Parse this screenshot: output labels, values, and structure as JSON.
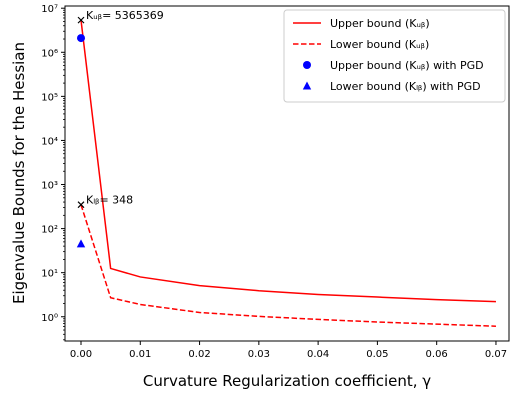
{
  "chart_data": {
    "type": "line",
    "title": "",
    "xlabel": "Curvature Regularization coefficient, γ",
    "ylabel": "Eigenvalue Bounds for the Hessian",
    "xlim": [
      -0.0027,
      0.0722
    ],
    "ylim_log10": [
      -0.55,
      7.05
    ],
    "y_scale": "log",
    "grid": false,
    "legend_position": "top-right",
    "x_ticks": [
      0.0,
      0.01,
      0.02,
      0.03,
      0.04,
      0.05,
      0.06,
      0.07
    ],
    "x_tick_labels": [
      "0.00",
      "0.01",
      "0.02",
      "0.03",
      "0.04",
      "0.05",
      "0.06",
      "0.07"
    ],
    "y_ticks_log10": [
      0,
      1,
      2,
      3,
      4,
      5,
      6,
      7
    ],
    "y_tick_labels": [
      "10⁰",
      "10¹",
      "10²",
      "10³",
      "10⁴",
      "10⁵",
      "10⁶",
      "10⁷"
    ],
    "series": [
      {
        "name": "Upper bound (K_ub)",
        "legend_label": "Upper bound (Kᵤᵦ)",
        "style": "solid-line",
        "color": "#ff0000",
        "x": [
          0.0,
          0.005,
          0.01,
          0.02,
          0.03,
          0.04,
          0.05,
          0.06,
          0.07
        ],
        "y": [
          5365369,
          12.5,
          8.0,
          5.1,
          3.9,
          3.2,
          2.8,
          2.45,
          2.2
        ]
      },
      {
        "name": "Lower bound (K_ub)",
        "legend_label": "Lower bound (Kᵤᵦ)",
        "style": "dashed-line",
        "color": "#ff0000",
        "x": [
          0.0,
          0.005,
          0.01,
          0.02,
          0.03,
          0.04,
          0.05,
          0.06,
          0.07
        ],
        "y": [
          348,
          2.7,
          1.9,
          1.25,
          1.02,
          0.87,
          0.76,
          0.68,
          0.61
        ]
      },
      {
        "name": "Upper bound (K_ub) with PGD",
        "legend_label": "Upper bound (Kᵤᵦ) with PGD",
        "style": "circle-marker",
        "color": "#0000ff",
        "x": [
          0.0
        ],
        "y": [
          2100000
        ]
      },
      {
        "name": "Lower bound (K_lb) with PGD",
        "legend_label": "Lower bound (Kₗᵦ) with PGD",
        "style": "triangle-marker",
        "color": "#0000ff",
        "x": [
          0.0
        ],
        "y": [
          45
        ]
      }
    ],
    "annotations": [
      {
        "marker": "x",
        "x": 0.0,
        "y": 5365369,
        "text": "Kᵤᵦ= 5365369"
      },
      {
        "marker": "x",
        "x": 0.0,
        "y": 348,
        "text": "Kₗᵦ= 348"
      }
    ]
  }
}
